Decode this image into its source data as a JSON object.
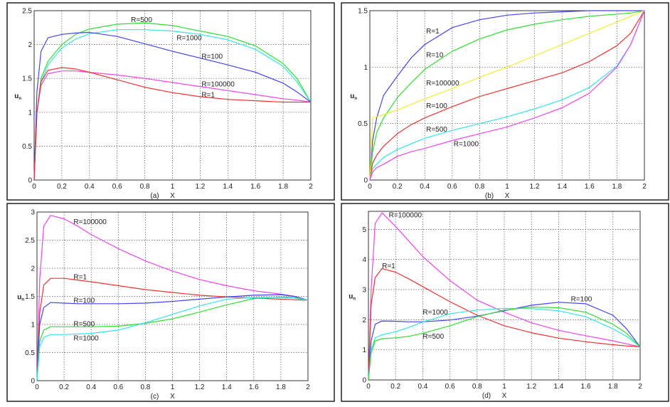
{
  "chart_data": [
    {
      "type": "line",
      "panel_label": "(a)",
      "xlabel": "X",
      "ylabel": "u",
      "ylabel_sub": "n",
      "xlim": [
        0,
        2
      ],
      "ylim": [
        0,
        2.5
      ],
      "grid": true,
      "xticks": [
        "0",
        "0.2",
        "0.4",
        "0.6",
        "0.8",
        "1",
        "1.2",
        "1.4",
        "1.6",
        "1.8",
        "2"
      ],
      "yticks": [
        "0",
        "0.5",
        "1",
        "1.5",
        "2",
        "2.5"
      ],
      "x": [
        0,
        0.02,
        0.05,
        0.1,
        0.2,
        0.3,
        0.4,
        0.6,
        0.8,
        1,
        1.2,
        1.4,
        1.6,
        1.8,
        1.9,
        2
      ],
      "series": [
        {
          "name": "R=500",
          "color": "#33dd33",
          "values": [
            0,
            1.0,
            1.5,
            1.75,
            2.0,
            2.15,
            2.23,
            2.3,
            2.32,
            2.28,
            2.2,
            2.12,
            1.98,
            1.72,
            1.5,
            1.15
          ]
        },
        {
          "name": "R=1000",
          "color": "#33e6e6",
          "values": [
            0,
            1.0,
            1.45,
            1.7,
            1.95,
            2.08,
            2.16,
            2.22,
            2.22,
            2.2,
            2.15,
            2.07,
            1.93,
            1.68,
            1.45,
            1.15
          ]
        },
        {
          "name": "R=100",
          "color": "#4444ee",
          "values": [
            0,
            1.3,
            1.9,
            2.1,
            2.15,
            2.17,
            2.18,
            2.12,
            2.01,
            1.9,
            1.8,
            1.7,
            1.59,
            1.43,
            1.3,
            1.15
          ]
        },
        {
          "name": "R=100000",
          "color": "#ee44ee",
          "values": [
            0,
            1.0,
            1.4,
            1.57,
            1.61,
            1.61,
            1.59,
            1.55,
            1.5,
            1.44,
            1.38,
            1.32,
            1.26,
            1.2,
            1.18,
            1.15
          ]
        },
        {
          "name": "R=1",
          "color": "#ee3333",
          "values": [
            0,
            1.0,
            1.45,
            1.62,
            1.66,
            1.64,
            1.59,
            1.48,
            1.37,
            1.29,
            1.23,
            1.19,
            1.17,
            1.15,
            1.15,
            1.15
          ]
        }
      ]
    },
    {
      "type": "line",
      "panel_label": "(b)",
      "xlabel": "X",
      "ylabel": "u",
      "ylabel_sub": "n",
      "xlim": [
        0,
        2
      ],
      "ylim": [
        0,
        1.5
      ],
      "grid": true,
      "xticks": [
        "0",
        "0.2",
        "0.4",
        "0.6",
        "0.8",
        "1",
        "1.2",
        "1.4",
        "1.6",
        "1.8",
        "2"
      ],
      "yticks": [
        "0",
        "0.5",
        "1",
        "1.5"
      ],
      "x": [
        0,
        0.02,
        0.05,
        0.1,
        0.2,
        0.3,
        0.4,
        0.6,
        0.8,
        1,
        1.2,
        1.4,
        1.6,
        1.8,
        1.9,
        2
      ],
      "series": [
        {
          "name": "R=1",
          "color": "#4444ee",
          "values": [
            0,
            0.35,
            0.55,
            0.75,
            0.92,
            1.08,
            1.2,
            1.35,
            1.42,
            1.46,
            1.48,
            1.49,
            1.5,
            1.5,
            1.5,
            1.5
          ]
        },
        {
          "name": "R=10",
          "color": "#33dd33",
          "values": [
            0,
            0.25,
            0.42,
            0.55,
            0.73,
            0.86,
            0.98,
            1.14,
            1.25,
            1.33,
            1.38,
            1.42,
            1.45,
            1.47,
            1.48,
            1.5
          ]
        },
        {
          "name": "R=100000",
          "color": "#eeee33",
          "values": [
            0,
            0.55,
            0.56,
            0.58,
            0.62,
            0.67,
            0.72,
            0.81,
            0.91,
            1.0,
            1.1,
            1.2,
            1.3,
            1.4,
            1.45,
            1.5
          ]
        },
        {
          "name": "R=100",
          "color": "#ee3333",
          "values": [
            0,
            0.15,
            0.22,
            0.3,
            0.41,
            0.49,
            0.55,
            0.65,
            0.74,
            0.81,
            0.88,
            0.95,
            1.05,
            1.19,
            1.3,
            1.5
          ]
        },
        {
          "name": "R=500",
          "color": "#33e6e6",
          "values": [
            0,
            0.1,
            0.14,
            0.2,
            0.27,
            0.32,
            0.37,
            0.44,
            0.5,
            0.56,
            0.63,
            0.71,
            0.82,
            1.01,
            1.2,
            1.5
          ]
        },
        {
          "name": "R=1000",
          "color": "#ee44ee",
          "values": [
            0,
            0.07,
            0.11,
            0.14,
            0.21,
            0.25,
            0.28,
            0.35,
            0.41,
            0.47,
            0.55,
            0.64,
            0.77,
            1.0,
            1.2,
            1.5
          ]
        }
      ]
    },
    {
      "type": "line",
      "panel_label": "(c)",
      "xlabel": "X",
      "ylabel": "u",
      "ylabel_sub": "n",
      "xlim": [
        0,
        2
      ],
      "ylim": [
        0,
        3
      ],
      "grid": true,
      "xticks": [
        "0",
        "0.2",
        "0.4",
        "0.6",
        "0.8",
        "1",
        "1.2",
        "1.4",
        "1.6",
        "1.8",
        "2"
      ],
      "yticks": [
        "0",
        "0.5",
        "1",
        "1.5",
        "2",
        "2.5",
        "3"
      ],
      "x": [
        0,
        0.02,
        0.05,
        0.1,
        0.2,
        0.3,
        0.4,
        0.6,
        0.8,
        1,
        1.2,
        1.4,
        1.6,
        1.8,
        1.9,
        2
      ],
      "series": [
        {
          "name": "R=100000",
          "color": "#ee44ee",
          "values": [
            0,
            1.8,
            2.75,
            2.94,
            2.88,
            2.75,
            2.6,
            2.35,
            2.13,
            1.95,
            1.8,
            1.69,
            1.6,
            1.54,
            1.5,
            1.43
          ]
        },
        {
          "name": "R=1",
          "color": "#ee3333",
          "values": [
            0,
            1.2,
            1.7,
            1.82,
            1.82,
            1.79,
            1.76,
            1.69,
            1.62,
            1.57,
            1.52,
            1.49,
            1.47,
            1.45,
            1.44,
            1.43
          ]
        },
        {
          "name": "R=100",
          "color": "#4444ee",
          "values": [
            0,
            1.0,
            1.3,
            1.39,
            1.38,
            1.37,
            1.37,
            1.37,
            1.38,
            1.41,
            1.45,
            1.49,
            1.52,
            1.53,
            1.5,
            1.43
          ]
        },
        {
          "name": "R=500",
          "color": "#33dd33",
          "values": [
            0,
            0.7,
            0.9,
            0.96,
            0.96,
            0.96,
            0.96,
            0.97,
            1.02,
            1.1,
            1.22,
            1.35,
            1.46,
            1.49,
            1.48,
            1.43
          ]
        },
        {
          "name": "R=1000",
          "color": "#33e6e6",
          "values": [
            0,
            0.6,
            0.77,
            0.82,
            0.82,
            0.83,
            0.84,
            0.9,
            1.03,
            1.18,
            1.33,
            1.45,
            1.48,
            1.48,
            1.47,
            1.43
          ]
        }
      ]
    },
    {
      "type": "line",
      "panel_label": "(d)",
      "xlabel": "X",
      "ylabel": "u",
      "ylabel_sub": "n",
      "xlim": [
        0,
        2
      ],
      "ylim": [
        0,
        5.6
      ],
      "grid": true,
      "xticks": [
        "0",
        "0.2",
        "0.4",
        "0.6",
        "0.8",
        "1",
        "1.2",
        "1.4",
        "1.6",
        "1.8",
        "2"
      ],
      "yticks": [
        "0",
        "1",
        "2",
        "3",
        "4",
        "5"
      ],
      "x": [
        0,
        0.02,
        0.05,
        0.1,
        0.2,
        0.3,
        0.4,
        0.6,
        0.8,
        1,
        1.2,
        1.4,
        1.6,
        1.8,
        1.9,
        2
      ],
      "series": [
        {
          "name": "R=100000",
          "color": "#ee44ee",
          "values": [
            0,
            3.0,
            5.2,
            5.55,
            5.1,
            4.6,
            4.1,
            3.3,
            2.65,
            2.25,
            1.9,
            1.65,
            1.47,
            1.3,
            1.2,
            1.1
          ]
        },
        {
          "name": "R=1",
          "color": "#ee3333",
          "values": [
            0,
            2.5,
            3.4,
            3.7,
            3.58,
            3.35,
            3.1,
            2.6,
            2.15,
            1.8,
            1.57,
            1.39,
            1.27,
            1.17,
            1.13,
            1.1
          ]
        },
        {
          "name": "R=100",
          "color": "#4444ee",
          "values": [
            0,
            1.3,
            1.85,
            1.96,
            1.95,
            1.93,
            1.93,
            1.99,
            2.12,
            2.3,
            2.48,
            2.58,
            2.53,
            2.15,
            1.7,
            1.1
          ]
        },
        {
          "name": "R=1000",
          "color": "#33e6e6",
          "values": [
            0,
            1.0,
            1.4,
            1.5,
            1.6,
            1.75,
            1.92,
            2.2,
            2.32,
            2.38,
            2.37,
            2.3,
            2.1,
            1.7,
            1.45,
            1.1
          ]
        },
        {
          "name": "R=500",
          "color": "#33dd33",
          "values": [
            0,
            0.9,
            1.3,
            1.37,
            1.4,
            1.45,
            1.55,
            1.8,
            2.1,
            2.32,
            2.42,
            2.4,
            2.25,
            1.85,
            1.55,
            1.1
          ]
        }
      ]
    }
  ]
}
